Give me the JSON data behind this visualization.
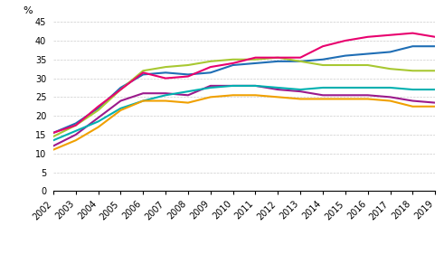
{
  "years": [
    2002,
    2003,
    2004,
    2005,
    2006,
    2007,
    2008,
    2009,
    2010,
    2011,
    2012,
    2013,
    2014,
    2015,
    2016,
    2017,
    2018,
    2019
  ],
  "series": {
    "Pääkaupunkiseutu": [
      15.5,
      18.0,
      22.0,
      27.5,
      31.0,
      31.5,
      31.0,
      31.5,
      33.5,
      34.0,
      34.5,
      34.5,
      35.0,
      36.0,
      36.5,
      37.0,
      38.5,
      38.5
    ],
    "Muu Helsinki-Uusimaa": [
      14.5,
      17.5,
      21.5,
      27.0,
      32.0,
      33.0,
      33.5,
      34.5,
      35.0,
      35.0,
      35.5,
      34.5,
      33.5,
      33.5,
      33.5,
      32.5,
      32.0,
      32.0
    ],
    "Etelä-Suomi": [
      12.0,
      15.0,
      19.5,
      24.0,
      26.0,
      26.0,
      25.5,
      28.0,
      28.0,
      28.0,
      27.0,
      26.5,
      25.5,
      25.5,
      25.5,
      25.0,
      24.0,
      23.5
    ],
    "Länsi-Suomi": [
      13.5,
      16.0,
      18.5,
      22.0,
      24.0,
      25.5,
      26.5,
      27.5,
      28.0,
      28.0,
      27.5,
      27.0,
      27.5,
      27.5,
      27.5,
      27.5,
      27.0,
      27.0
    ],
    "Pohjois- ja Itä-Suomi": [
      11.0,
      13.5,
      17.0,
      21.5,
      24.0,
      24.0,
      23.5,
      25.0,
      25.5,
      25.5,
      25.0,
      24.5,
      24.5,
      24.5,
      24.5,
      24.0,
      22.5,
      22.5
    ],
    "Ahvenanmaa-Åland": [
      15.5,
      17.5,
      22.5,
      27.0,
      31.5,
      30.0,
      30.5,
      33.0,
      34.0,
      35.5,
      35.5,
      35.5,
      38.5,
      40.0,
      41.0,
      41.5,
      42.0,
      41.0
    ]
  },
  "colors": {
    "Pääkaupunkiseutu": "#1f6eb5",
    "Muu Helsinki-Uusimaa": "#a8c832",
    "Etelä-Suomi": "#9b1a8c",
    "Länsi-Suomi": "#00b0b0",
    "Pohjois- ja Itä-Suomi": "#f0a000",
    "Ahvenanmaa-Åland": "#e8006e"
  },
  "ylim": [
    0,
    45
  ],
  "yticks": [
    0,
    5,
    10,
    15,
    20,
    25,
    30,
    35,
    40,
    45
  ],
  "ylabel": "%",
  "background_color": "#ffffff",
  "grid_color": "#cccccc",
  "legend_order": [
    0,
    2,
    4,
    1,
    3,
    5
  ]
}
